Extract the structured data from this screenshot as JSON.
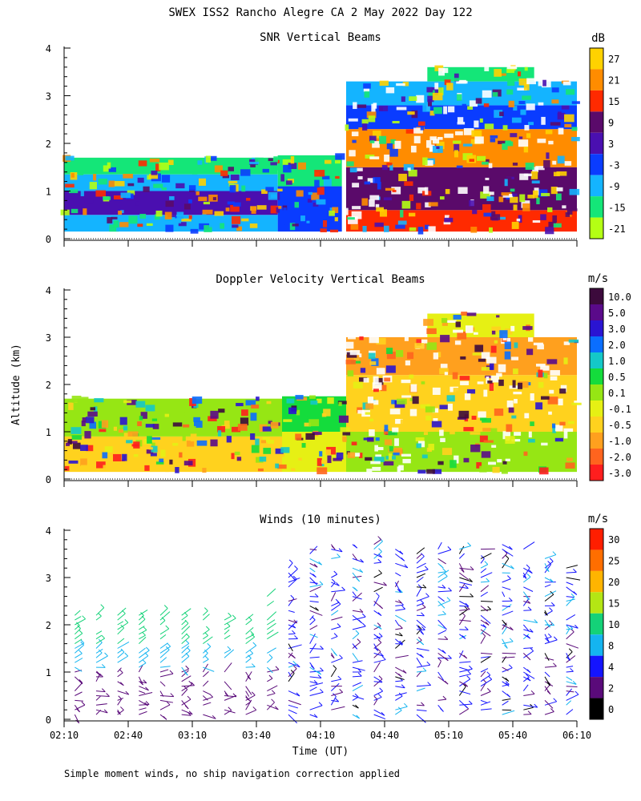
{
  "title": "SWEX ISS2 Rancho Alegre CA   2 May 2022 Day 122",
  "footnote": "Simple moment winds, no ship navigation correction applied",
  "y_axis_label": "Altitude (km)",
  "x_axis_label": "Time (UT)",
  "chart_data": [
    {
      "type": "heatmap",
      "title": "SNR Vertical Beams",
      "units": "dB",
      "xlim_minutes": [
        130,
        370
      ],
      "ylim_km": [
        0,
        4
      ],
      "y_ticks": [
        "0",
        "1",
        "2",
        "3",
        "4"
      ],
      "colorbar_labels": [
        "27",
        "21",
        "15",
        "9",
        "3",
        "-3",
        "-9",
        "-15",
        "-21"
      ],
      "colorbar_colors": [
        "#ffd200",
        "#ff8c00",
        "#ff2a00",
        "#5a0a6a",
        "#4a0fb0",
        "#0a3cff",
        "#14b4ff",
        "#14e678",
        "#b4ff14"
      ],
      "cells": [
        {
          "t": [
            130,
            230
          ],
          "h": [
            0.15,
            0.5
          ],
          "c": "#14b4ff"
        },
        {
          "t": [
            130,
            230
          ],
          "h": [
            0.5,
            1.0
          ],
          "c": "#4a0fb0"
        },
        {
          "t": [
            130,
            230
          ],
          "h": [
            1.0,
            1.35
          ],
          "c": "#14b4ff"
        },
        {
          "t": [
            130,
            230
          ],
          "h": [
            1.35,
            1.7
          ],
          "c": "#14e678"
        },
        {
          "t": [
            230,
            260
          ],
          "h": [
            0.15,
            1.1
          ],
          "c": "#0a3cff"
        },
        {
          "t": [
            230,
            260
          ],
          "h": [
            1.1,
            1.75
          ],
          "c": "#14e678"
        },
        {
          "t": [
            262,
            370
          ],
          "h": [
            0.15,
            0.6
          ],
          "c": "#ff2a00"
        },
        {
          "t": [
            262,
            370
          ],
          "h": [
            0.6,
            1.5
          ],
          "c": "#5a0a6a"
        },
        {
          "t": [
            262,
            370
          ],
          "h": [
            1.5,
            2.3
          ],
          "c": "#ff8c00"
        },
        {
          "t": [
            262,
            370
          ],
          "h": [
            2.3,
            2.8
          ],
          "c": "#0a3cff"
        },
        {
          "t": [
            262,
            370
          ],
          "h": [
            2.8,
            3.3
          ],
          "c": "#14b4ff"
        },
        {
          "t": [
            300,
            350
          ],
          "h": [
            3.3,
            3.6
          ],
          "c": "#14e678"
        }
      ]
    },
    {
      "type": "heatmap",
      "title": "Doppler Velocity Vertical Beams",
      "units": "m/s",
      "xlim_minutes": [
        130,
        370
      ],
      "ylim_km": [
        0,
        4
      ],
      "y_ticks": [
        "0",
        "1",
        "2",
        "3",
        "4"
      ],
      "colorbar_labels": [
        "10.0",
        "5.0",
        "3.0",
        "2.0",
        "1.0",
        "0.5",
        "0.1",
        "-0.1",
        "-0.5",
        "-1.0",
        "-2.0",
        "-3.0"
      ],
      "colorbar_colors": [
        "#3c0a3c",
        "#5a0a8a",
        "#2a14d2",
        "#0a6eff",
        "#14c8c8",
        "#14dc3c",
        "#96e614",
        "#e6f014",
        "#ffd21e",
        "#ffa01e",
        "#ff641e",
        "#ff1e1e"
      ],
      "cells": [
        {
          "t": [
            130,
            232
          ],
          "h": [
            0.15,
            0.9
          ],
          "c": "#ffd21e"
        },
        {
          "t": [
            130,
            232
          ],
          "h": [
            0.9,
            1.7
          ],
          "c": "#96e614"
        },
        {
          "t": [
            232,
            262
          ],
          "h": [
            0.15,
            1.0
          ],
          "c": "#e6f014"
        },
        {
          "t": [
            232,
            262
          ],
          "h": [
            1.0,
            1.75
          ],
          "c": "#14dc3c"
        },
        {
          "t": [
            262,
            370
          ],
          "h": [
            0.15,
            1.0
          ],
          "c": "#96e614"
        },
        {
          "t": [
            262,
            370
          ],
          "h": [
            1.0,
            2.2
          ],
          "c": "#ffd21e"
        },
        {
          "t": [
            262,
            370
          ],
          "h": [
            2.2,
            3.0
          ],
          "c": "#ffa01e"
        },
        {
          "t": [
            300,
            350
          ],
          "h": [
            3.0,
            3.5
          ],
          "c": "#e6f014"
        }
      ]
    },
    {
      "type": "wind_barbs",
      "title": "Winds (10 minutes)",
      "units": "m/s",
      "xlim_minutes": [
        130,
        370
      ],
      "ylim_km": [
        0,
        4
      ],
      "y_ticks": [
        "0",
        "1",
        "2",
        "3",
        "4"
      ],
      "x_ticks": [
        "02:10",
        "02:40",
        "03:10",
        "03:40",
        "04:10",
        "04:40",
        "05:10",
        "05:40",
        "06:10"
      ],
      "x_tick_minutes": [
        130,
        160,
        190,
        220,
        250,
        280,
        310,
        340,
        370
      ],
      "colorbar_labels": [
        "30",
        "25",
        "20",
        "15",
        "10",
        "8",
        "4",
        "2",
        "0"
      ],
      "colorbar_colors": [
        "#ff1e00",
        "#ff6e00",
        "#ffb400",
        "#b4e614",
        "#14d278",
        "#14b4f0",
        "#1414ff",
        "#5a0a7a",
        "#000000"
      ],
      "columns_minutes": [
        135,
        145,
        155,
        165,
        175,
        185,
        195,
        205,
        215,
        225,
        235,
        245,
        255,
        265,
        275,
        285,
        295,
        305,
        315,
        325,
        335,
        345,
        355,
        365
      ],
      "top_km": [
        2.2,
        2.2,
        2.2,
        2.2,
        2.2,
        2.2,
        2.2,
        2.2,
        2.2,
        2.6,
        3.3,
        3.6,
        3.8,
        3.7,
        3.8,
        3.6,
        3.5,
        3.6,
        3.7,
        3.8,
        3.8,
        3.6,
        3.4,
        3.3
      ]
    }
  ]
}
